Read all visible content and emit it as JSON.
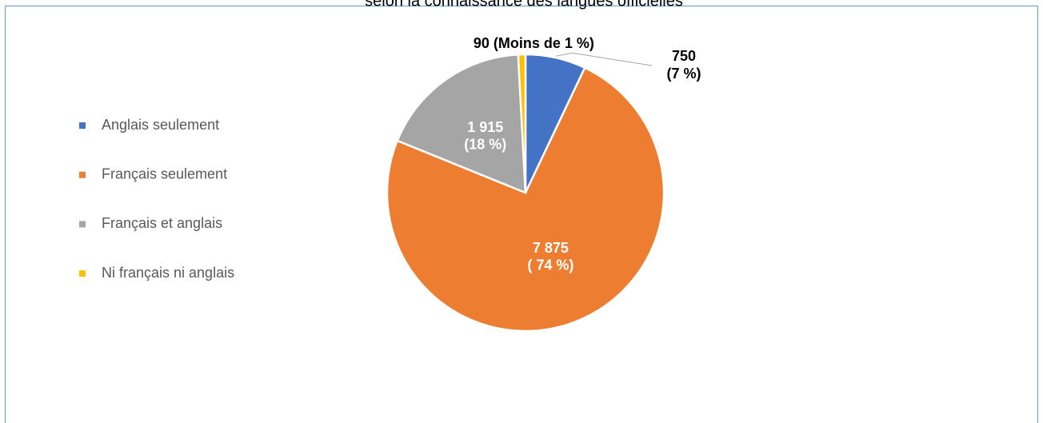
{
  "chart_data": {
    "type": "pie",
    "title": "selon la connaissance des langues officielles",
    "categories": [
      "Anglais seulement",
      "Français seulement",
      "Français et anglais",
      "Ni français ni anglais"
    ],
    "values": [
      750,
      7875,
      1915,
      90
    ],
    "value_labels": [
      "750\n(7 %)",
      "7 875\n( 74 %)",
      "1 915\n(18 %)",
      "90 (Moins de 1 %)"
    ],
    "colors": [
      "#4472c4",
      "#ed7d31",
      "#a5a5a5",
      "#ffc000"
    ],
    "legend": "left"
  }
}
